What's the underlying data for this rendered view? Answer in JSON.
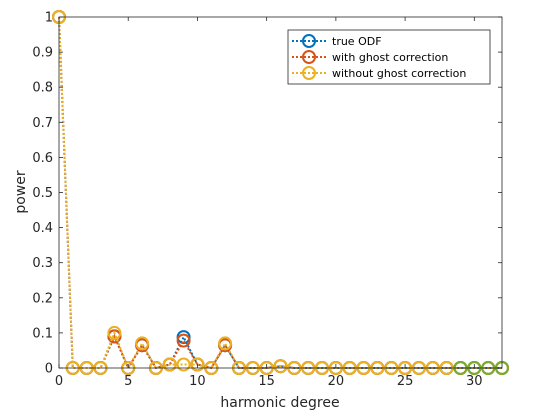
{
  "chart_data": {
    "type": "line",
    "title": "",
    "xlabel": "harmonic degree",
    "ylabel": "power",
    "xlim": [
      0,
      32
    ],
    "ylim": [
      0,
      1
    ],
    "xticks": [
      "0",
      "5",
      "10",
      "15",
      "20",
      "25",
      "30"
    ],
    "xtick_values": [
      0,
      5,
      10,
      15,
      20,
      25,
      30
    ],
    "yticks": [
      "0",
      "0.1",
      "0.2",
      "0.3",
      "0.4",
      "0.5",
      "0.6",
      "0.7",
      "0.8",
      "0.9",
      "1"
    ],
    "ytick_values": [
      0,
      0.1,
      0.2,
      0.3,
      0.4,
      0.5,
      0.6,
      0.7,
      0.8,
      0.9,
      1
    ],
    "grid": false,
    "legend_position": "top-right",
    "x": [
      0,
      1,
      2,
      3,
      4,
      5,
      6,
      7,
      8,
      9,
      10,
      11,
      12,
      13,
      14,
      15,
      16,
      17,
      18,
      19,
      20,
      21,
      22,
      23,
      24,
      25,
      26,
      27,
      28,
      29,
      30,
      31,
      32
    ],
    "series": [
      {
        "name": "true ODF",
        "color": "#0072BD",
        "values": [
          1,
          0,
          0,
          0,
          0.09,
          0,
          0.065,
          0,
          0.01,
          0.088,
          0.01,
          0,
          0.065,
          0,
          0,
          0,
          0.005,
          0,
          0,
          0,
          0,
          0,
          0,
          0,
          0,
          0,
          0,
          0,
          0,
          0,
          0,
          0,
          0
        ]
      },
      {
        "name": "with ghost correction",
        "color": "#D95319",
        "values": [
          1,
          0,
          0,
          0,
          0.09,
          0,
          0.065,
          0,
          0.01,
          0.078,
          0.01,
          0,
          0.065,
          0,
          0,
          0,
          0.005,
          0,
          0,
          0,
          0,
          0,
          0,
          0,
          0,
          0,
          0,
          0,
          0,
          0,
          0,
          0,
          0
        ]
      },
      {
        "name": "without ghost correction",
        "color": "#EDB120",
        "values": [
          1,
          0,
          0,
          0,
          0.1,
          0,
          0.07,
          0,
          0.01,
          0.01,
          0.01,
          0,
          0.07,
          0,
          0,
          0,
          0.005,
          0,
          0,
          0,
          0,
          0,
          0,
          0,
          0,
          0,
          0,
          0,
          0,
          0,
          0,
          0,
          0
        ]
      }
    ],
    "end_markers": {
      "color": "#77AC30",
      "x": [
        29,
        30,
        31,
        32
      ],
      "values": [
        0,
        0,
        0,
        0
      ]
    }
  }
}
